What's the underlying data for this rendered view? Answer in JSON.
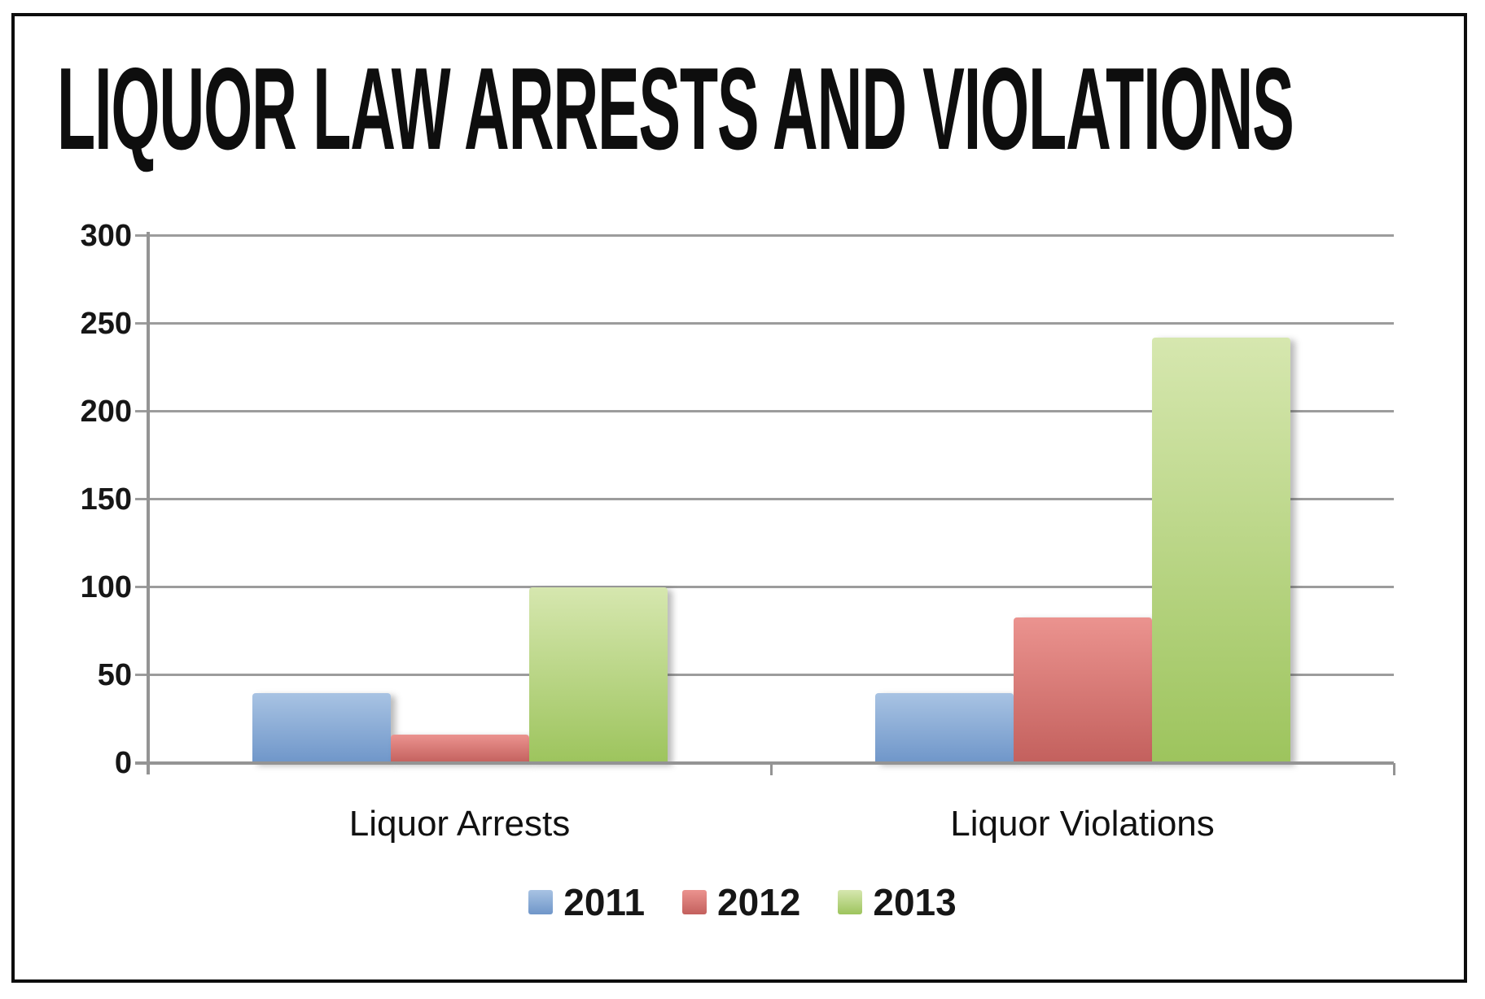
{
  "title": "LIQUOR LAW ARRESTS AND VIOLATIONS",
  "chart_data": {
    "type": "bar",
    "title": "LIQUOR LAW ARRESTS AND VIOLATIONS",
    "categories": [
      "Liquor Arrests",
      "Liquor Violations"
    ],
    "series": [
      {
        "name": "2011",
        "values": [
          40,
          40
        ],
        "color": "#7FA6D6",
        "gradient": [
          "#A8C3E3",
          "#6F96C9"
        ]
      },
      {
        "name": "2012",
        "values": [
          16,
          83
        ],
        "color": "#D8716D",
        "gradient": [
          "#EB938F",
          "#C3605D"
        ]
      },
      {
        "name": "2013",
        "values": [
          100,
          242
        ],
        "color": "#AFCE70",
        "gradient": [
          "#D6E7AF",
          "#9DC45D"
        ]
      }
    ],
    "ylim": [
      0,
      300
    ],
    "yticks": [
      0,
      50,
      100,
      150,
      200,
      250,
      300
    ],
    "xlabel": "",
    "ylabel": "",
    "grid": "horizontal",
    "legend_position": "bottom",
    "colors": {
      "grid": "#9c9c9c",
      "axis": "#949494",
      "text": "#161616",
      "border": "#0d0d0d",
      "background": "#ffffff"
    }
  }
}
